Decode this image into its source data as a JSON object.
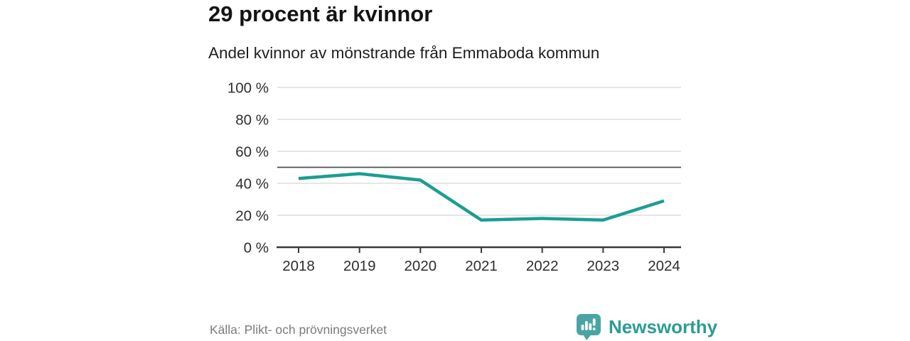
{
  "header": {
    "title": "29 procent är kvinnor",
    "subtitle": "Andel kvinnor av mönstrande från Emmaboda kommun"
  },
  "footer": {
    "source": "Källa: Plikt- och prövningsverket",
    "brand_name": "Newsworthy",
    "logo_icon": "newsworthy-bar-chart-bubble-icon"
  },
  "colors": {
    "line": "#1b9e91",
    "grid": "#d8d8d8",
    "reference_line": "#4d4d4d",
    "axis": "#383838",
    "tick_text": "#2e2e2e",
    "muted_text": "#7b7b7b",
    "brand_teal": "#2d9b96",
    "logo_teal": "#48a5a3",
    "background": "#ffffff"
  },
  "chart_data": {
    "type": "line",
    "title": "29 procent är kvinnor",
    "subtitle": "Andel kvinnor av mönstrande från Emmaboda kommun",
    "categories": [
      "2018",
      "2019",
      "2020",
      "2021",
      "2022",
      "2023",
      "2024"
    ],
    "series": [
      {
        "name": "Andel kvinnor av mönstrande",
        "values": [
          43,
          46,
          42,
          17,
          18,
          17,
          29
        ]
      }
    ],
    "xlabel": "",
    "ylabel": "",
    "ylim": [
      0,
      100
    ],
    "yticks": [
      0,
      20,
      40,
      60,
      80,
      100
    ],
    "ytick_suffix": " %",
    "reference_line_y": 50,
    "grid": "horizontal",
    "legend_position": "none"
  }
}
